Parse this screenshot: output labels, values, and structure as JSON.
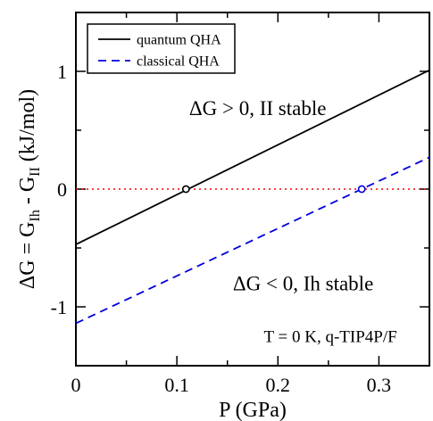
{
  "chart_data": {
    "type": "line",
    "xlabel": "P (GPa)",
    "ylabel": {
      "parts": [
        "ΔG = G",
        "Ih",
        " - G",
        "II",
        " (kJ/mol)"
      ]
    },
    "xlim": [
      0,
      0.35
    ],
    "ylim": [
      -1.5,
      1.5
    ],
    "x_ticks": [
      {
        "value": 0,
        "label": "0"
      },
      {
        "value": 0.1,
        "label": "0.1"
      },
      {
        "value": 0.2,
        "label": "0.2"
      },
      {
        "value": 0.3,
        "label": "0.3"
      }
    ],
    "y_ticks": [
      {
        "value": -1,
        "label": "-1"
      },
      {
        "value": 0,
        "label": "0"
      },
      {
        "value": 1,
        "label": "1"
      }
    ],
    "grid": false,
    "legend_placement": "top-left",
    "series": [
      {
        "name": "quantum QHA",
        "style": "solid",
        "color": "#000000",
        "x": [
          0,
          0.35
        ],
        "y": [
          -0.47,
          1.01
        ]
      },
      {
        "name": "classical QHA",
        "style": "dashed",
        "color": "#0000dd",
        "x": [
          0,
          0.35
        ],
        "y": [
          -1.14,
          0.27
        ]
      }
    ],
    "reference_line": {
      "y": 0,
      "style": "dotted",
      "color": "#ff0000"
    },
    "markers": [
      {
        "x": 0.109,
        "y": 0,
        "style": "open-circle",
        "color": "#000000"
      },
      {
        "x": 0.283,
        "y": 0,
        "style": "open-circle",
        "color": "#0000dd"
      }
    ],
    "annotations": [
      {
        "text": "ΔG > 0, II stable",
        "x": 0.18,
        "y": 0.63,
        "size": 23
      },
      {
        "text": "ΔG < 0, Ih stable",
        "x": 0.225,
        "y": -0.86,
        "size": 23
      },
      {
        "text": "T = 0 K, q-TIP4P/F",
        "x": 0.252,
        "y": -1.3,
        "size": 19
      }
    ]
  }
}
